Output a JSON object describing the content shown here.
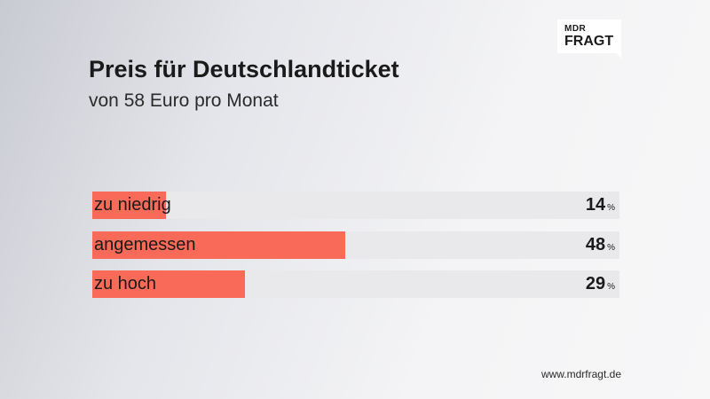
{
  "logo": {
    "line1": "MDR",
    "line2": "FRAGT"
  },
  "chart_data": {
    "type": "bar",
    "orientation": "horizontal",
    "title": "Preis für Deutschlandticket",
    "subtitle": "von 58 Euro pro Monat",
    "categories": [
      "zu niedrig",
      "angemessen",
      "zu hoch"
    ],
    "values": [
      14,
      48,
      29
    ],
    "unit": "%",
    "xlim": [
      0,
      100
    ],
    "bar_color": "#fa6a58",
    "track_color": "#e9e9ec",
    "grid": false,
    "legend": "none"
  },
  "footer": {
    "source": "www.mdrfragt.de"
  }
}
